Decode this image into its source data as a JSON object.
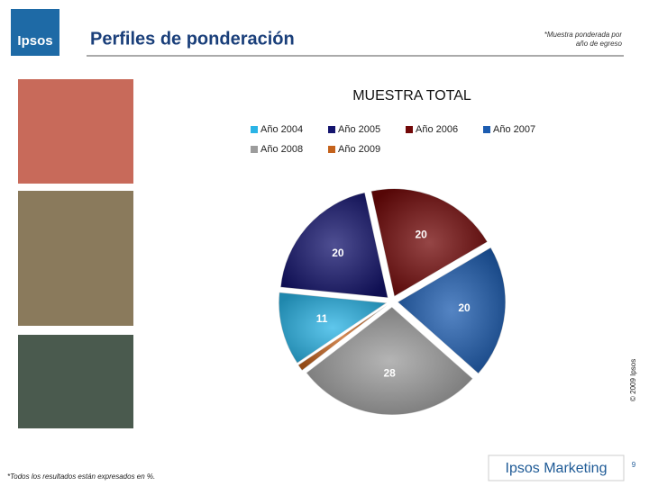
{
  "header": {
    "logo": "Ipsos",
    "title": "Perfiles de ponderación",
    "note": "*Muestra ponderada por año de egreso"
  },
  "chart_data": {
    "type": "pie",
    "title": "MUESTRA TOTAL",
    "categories": [
      "Año 2004",
      "Año 2005",
      "Año 2006",
      "Año 2007",
      "Año 2008",
      "Año 2009"
    ],
    "values": [
      11,
      20,
      20,
      20,
      28,
      1
    ],
    "colors": [
      "#2ab4e6",
      "#14146e",
      "#720808",
      "#1c5cb0",
      "#9c9c9c",
      "#c4621c"
    ],
    "legend": "top"
  },
  "footer": {
    "footnote": "*Todos los resultados están expresados en %.",
    "copyright": "© 2009 Ipsos",
    "brand": "Ipsos Marketing",
    "page": "9"
  }
}
